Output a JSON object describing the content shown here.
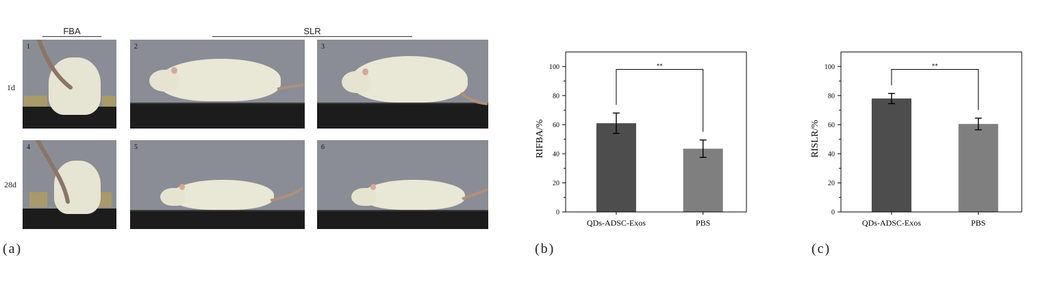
{
  "photo_panel": {
    "headers": {
      "fba": "FBA",
      "slr": "SLR"
    },
    "row_labels": [
      "1d",
      "28d"
    ],
    "photo_numbers": [
      "1",
      "2",
      "3",
      "4",
      "5",
      "6"
    ]
  },
  "panel_labels": {
    "a": "(a)",
    "b": "(b)",
    "c": "(c)"
  },
  "colors": {
    "qds_bar": "#4d4d4d",
    "pbs_bar": "#7f7f7f",
    "photo_bg": "#8a8d95",
    "floor": "#1c1c1c",
    "rat": "#e8e6d4"
  },
  "chart_data": [
    {
      "type": "bar",
      "categories": [
        "QDs-ADSC-Exos",
        "PBS"
      ],
      "values": [
        61,
        43.5
      ],
      "errors": [
        7,
        6
      ],
      "ylabel": "RIFBA/%",
      "xlabel": "",
      "title": "",
      "ylim": [
        0,
        110
      ],
      "yticks": [
        0,
        20,
        40,
        60,
        80,
        100
      ],
      "significance": "**"
    },
    {
      "type": "bar",
      "categories": [
        "QDs-ADSC-Exos",
        "PBS"
      ],
      "values": [
        78,
        60.5
      ],
      "errors": [
        3.5,
        4
      ],
      "ylabel": "RISLR/%",
      "xlabel": "",
      "title": "",
      "ylim": [
        0,
        110
      ],
      "yticks": [
        0,
        20,
        40,
        60,
        80,
        100
      ],
      "significance": "**"
    }
  ]
}
